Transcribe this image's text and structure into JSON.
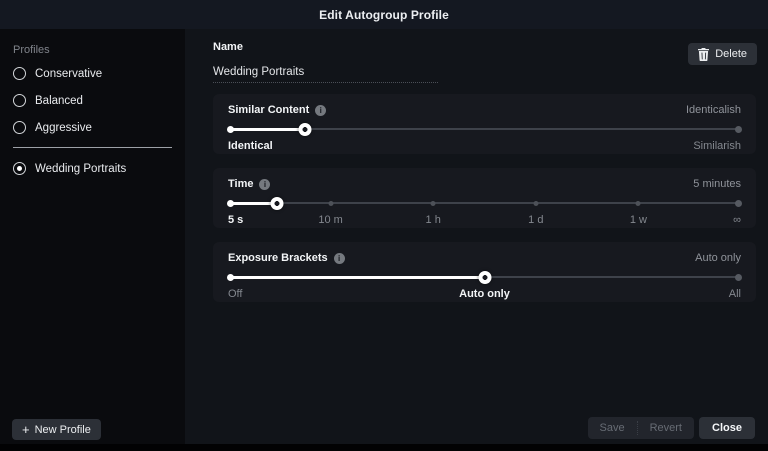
{
  "title_bar": {
    "title": "Edit Autogroup Profile"
  },
  "sidebar": {
    "heading": "Profiles",
    "items": [
      {
        "label": "Conservative",
        "selected": false
      },
      {
        "label": "Balanced",
        "selected": false
      },
      {
        "label": "Aggressive",
        "selected": false
      },
      {
        "label": "Wedding Portraits",
        "selected": true
      }
    ],
    "divider_after": 2,
    "new_profile": {
      "plus_glyph": "+",
      "label": "New Profile"
    }
  },
  "main": {
    "name_label": "Name",
    "name_value": "Wedding Portraits",
    "delete_button": {
      "icon": "trash-icon",
      "label": "Delete"
    },
    "sections": [
      {
        "title": "Similar Content",
        "info_glyph": "i",
        "value": "Identicalish",
        "slider": {
          "fill_pct": 15,
          "ticks": []
        },
        "labels": [
          {
            "text": "Identical",
            "pct": 0,
            "align": "left",
            "active": true
          },
          {
            "text": "Similarish",
            "pct": 100,
            "align": "right",
            "active": false
          }
        ]
      },
      {
        "title": "Time",
        "info_glyph": "i",
        "value": "5 minutes",
        "slider": {
          "fill_pct": 9.5,
          "ticks": [
            20,
            40,
            60,
            80
          ]
        },
        "labels": [
          {
            "text": "5 s",
            "pct": 0,
            "align": "left",
            "active": true
          },
          {
            "text": "10 m",
            "pct": 20,
            "align": "center",
            "active": false
          },
          {
            "text": "1 h",
            "pct": 40,
            "align": "center",
            "active": false
          },
          {
            "text": "1 d",
            "pct": 60,
            "align": "center",
            "active": false
          },
          {
            "text": "1 w",
            "pct": 80,
            "align": "center",
            "active": false
          },
          {
            "text": "∞",
            "pct": 100,
            "align": "right",
            "active": false
          }
        ]
      },
      {
        "title": "Exposure Brackets",
        "info_glyph": "i",
        "value": "Auto only",
        "slider": {
          "fill_pct": 50,
          "ticks": []
        },
        "labels": [
          {
            "text": "Off",
            "pct": 0,
            "align": "left",
            "active": false
          },
          {
            "text": "Auto only",
            "pct": 50,
            "align": "center",
            "active": true
          },
          {
            "text": "All",
            "pct": 100,
            "align": "right",
            "active": false
          }
        ]
      }
    ],
    "footer": {
      "save": "Save",
      "revert": "Revert",
      "close": "Close"
    }
  },
  "colors": {
    "titlebar_bg": "#141821",
    "sidebar_bg": "#0a0b0e",
    "main_bg": "#111419",
    "card_bg": "#17191f",
    "button_bg": "#2c3037",
    "disabled_group_bg": "#22252c",
    "accent_white": "#ffffff",
    "muted_text": "#84888f"
  }
}
